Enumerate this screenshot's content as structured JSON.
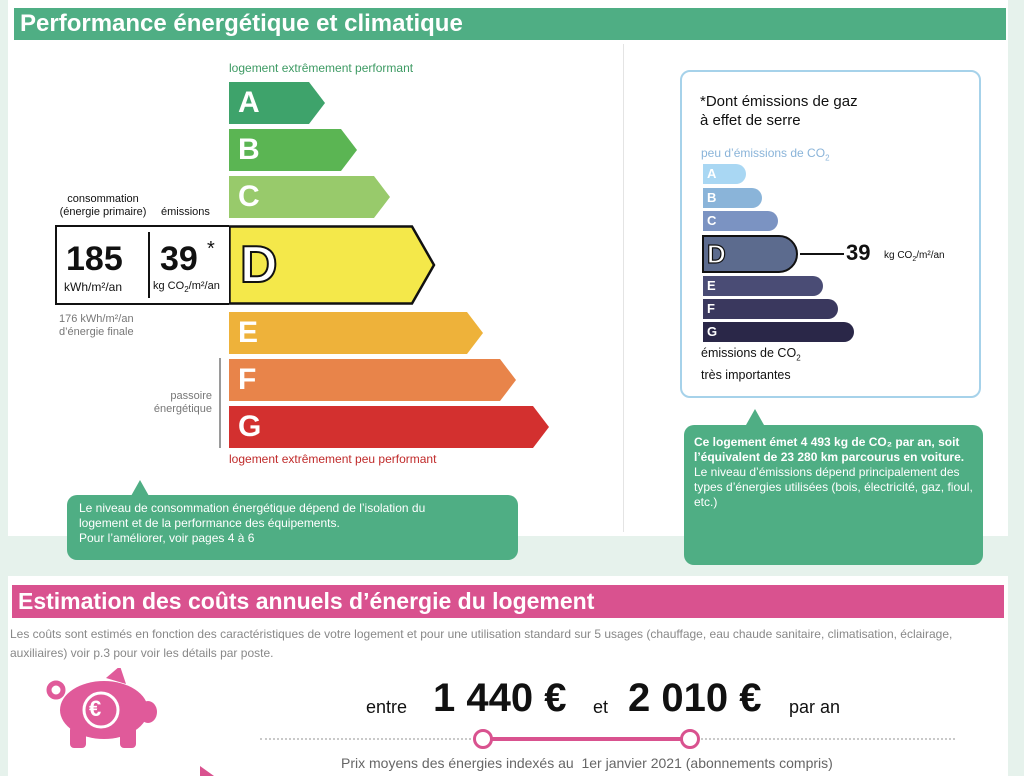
{
  "performance": {
    "title": "Performance énergétique et climatique",
    "top_label": "logement extrêmement performant",
    "bottom_label": "logement extrêmement peu performant",
    "labels": {
      "consumption_line1": "consommation",
      "consumption_line2": "(énergie primaire)",
      "emissions": "émissions"
    },
    "classes": [
      {
        "letter": "A",
        "color": "#3ea36b"
      },
      {
        "letter": "B",
        "color": "#5bb553"
      },
      {
        "letter": "C",
        "color": "#98ca6b"
      },
      {
        "letter": "D",
        "color": "#f4e84a"
      },
      {
        "letter": "E",
        "color": "#eeb23a"
      },
      {
        "letter": "F",
        "color": "#e8844a"
      },
      {
        "letter": "G",
        "color": "#d3302f"
      }
    ],
    "current_class": "D",
    "consumption_value": "185",
    "consumption_unit": "kWh/m²/an",
    "emissions_value": "39",
    "emissions_star": "*",
    "emissions_unit_prefix": "kg CO",
    "emissions_unit_sub": "2",
    "emissions_unit_suffix": "/m²/an",
    "final_energy_line1": "176 kWh/m²/an",
    "final_energy_line2": "d’énergie finale",
    "passoire_line1": "passoire",
    "passoire_line2": "énergétique",
    "info_line1": "Le niveau de consommation énergétique dépend de l’isolation du",
    "info_line2": "logement et de la performance des équipements.",
    "info_line3": "Pour l’améliorer, voir pages 4 à 6"
  },
  "ges": {
    "title_line1": "*Dont émissions de gaz",
    "title_line2": "à effet de serre",
    "low_label": "peu d’émissions de CO",
    "low_label_sub": "2",
    "classes": [
      {
        "letter": "A",
        "color": "#a9d7f3"
      },
      {
        "letter": "B",
        "color": "#8ab4d9"
      },
      {
        "letter": "C",
        "color": "#7b93c2"
      },
      {
        "letter": "D",
        "color": "#5c6b8e"
      },
      {
        "letter": "E",
        "color": "#4a4c75"
      },
      {
        "letter": "F",
        "color": "#3a385e"
      },
      {
        "letter": "G",
        "color": "#2a2748"
      }
    ],
    "current_class": "D",
    "value": "39",
    "unit_prefix": "kg CO",
    "unit_sub": "2",
    "unit_suffix": "/m²/an",
    "high_label_line1": "émissions de CO",
    "high_label_sub": "2",
    "high_label_line2": "très importantes",
    "info_bold": "Ce logement émet 4 493 kg de CO₂ par an, soit l’équivalent de 23 280 km parcourus en voiture.",
    "info_normal": "Le niveau d’émissions dépend principalement des types d’énergies utilisées (bois, électricité, gaz, fioul, etc.)"
  },
  "costs": {
    "title": "Estimation des coûts annuels d’énergie du logement",
    "description": "Les coûts sont estimés en fonction des caractéristiques de votre logement et pour une utilisation standard sur 5 usages (chauffage, eau chaude sanitaire, climatisation, éclairage, auxiliaires) voir p.3 pour voir les détails par poste.",
    "between": "entre",
    "min": "1 440 €",
    "and": "et",
    "max": "2 010 €",
    "per_year": "par an",
    "footnote": "Prix moyens des énergies indexés au  1er janvier 2021 (abonnements compris)",
    "piggy_symbol": "€",
    "piggy_color": "#e05a9a"
  }
}
